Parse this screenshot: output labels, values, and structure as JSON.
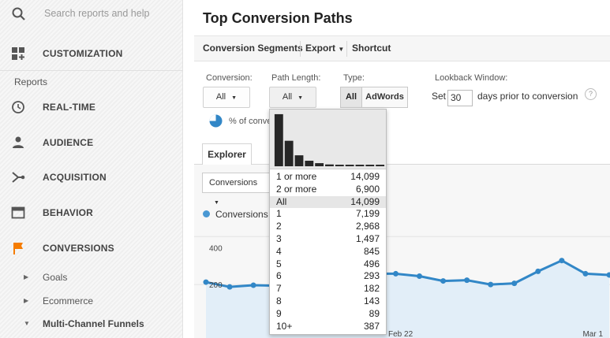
{
  "sidebar": {
    "search_placeholder": "Search reports and help",
    "customization_label": "CUSTOMIZATION",
    "reports_heading": "Reports",
    "items": [
      {
        "label": "REAL-TIME",
        "icon": "clock-icon"
      },
      {
        "label": "AUDIENCE",
        "icon": "person-icon"
      },
      {
        "label": "ACQUISITION",
        "icon": "acquisition-icon"
      },
      {
        "label": "BEHAVIOR",
        "icon": "behavior-icon"
      },
      {
        "label": "CONVERSIONS",
        "icon": "flag-icon",
        "color": "#f57c00"
      }
    ],
    "subitems": [
      {
        "label": "Goals",
        "arrow": "▶"
      },
      {
        "label": "Ecommerce",
        "arrow": "▶"
      },
      {
        "label": "Multi-Channel Funnels",
        "arrow": "▼"
      }
    ]
  },
  "page": {
    "title": "Top Conversion Paths"
  },
  "toolbar": {
    "segments_label": "Conversion Segments",
    "export_label": "Export",
    "shortcut_label": "Shortcut"
  },
  "filters": {
    "conversion_label": "Conversion:",
    "conversion_value": "All",
    "path_length_label": "Path Length:",
    "path_length_value": "All",
    "type_label": "Type:",
    "type_all": "All",
    "type_adwords": "AdWords",
    "lookback_label": "Lookback Window:",
    "lookback_set": "Set",
    "lookback_value": "30",
    "lookback_suffix": "days prior to conversion",
    "help": "?"
  },
  "pct_text": "% of conve",
  "tabs": {
    "explorer": "Explorer"
  },
  "metric_select": "Conversions",
  "legend_label": "Conversions",
  "chart_data": {
    "type": "area",
    "y_tick": "400",
    "y_tick2": "200",
    "x_labels": [
      "Feb 22",
      "Mar 1"
    ],
    "x_label_hidden": "...",
    "series": [
      {
        "values": [
          210,
          190,
          197,
          195,
          200,
          205,
          220,
          245,
          245,
          235,
          215,
          218,
          200,
          205,
          255,
          300,
          245,
          240
        ]
      }
    ],
    "ylim": [
      0,
      460
    ],
    "colors": {
      "line": "#3287c7",
      "fill": "#e2eef8"
    }
  },
  "popup": {
    "histogram": [
      14099,
      6900,
      2968,
      1497,
      845,
      496,
      293,
      182,
      143,
      89,
      387
    ],
    "rows": [
      {
        "key": "1 or more",
        "value": "14,099",
        "highlight": false
      },
      {
        "key": "2 or more",
        "value": "6,900",
        "highlight": false
      },
      {
        "key": "All",
        "value": "14,099",
        "highlight": true
      },
      {
        "key": "1",
        "value": "7,199",
        "highlight": false
      },
      {
        "key": "2",
        "value": "2,968",
        "highlight": false
      },
      {
        "key": "3",
        "value": "1,497",
        "highlight": false
      },
      {
        "key": "4",
        "value": "845",
        "highlight": false
      },
      {
        "key": "5",
        "value": "496",
        "highlight": false
      },
      {
        "key": "6",
        "value": "293",
        "highlight": false
      },
      {
        "key": "7",
        "value": "182",
        "highlight": false
      },
      {
        "key": "8",
        "value": "143",
        "highlight": false
      },
      {
        "key": "9",
        "value": "89",
        "highlight": false
      },
      {
        "key": "10+",
        "value": "387",
        "highlight": false
      }
    ]
  }
}
